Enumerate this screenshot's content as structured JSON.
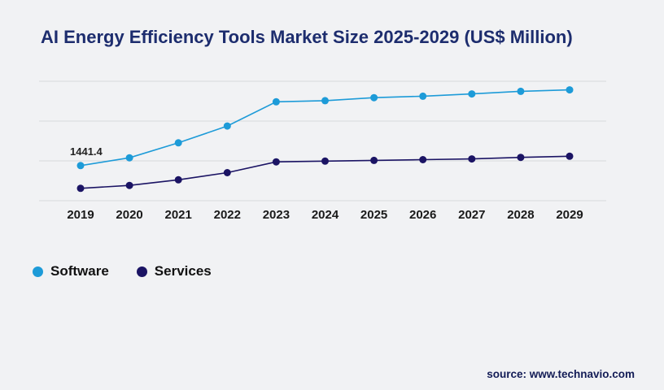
{
  "chart_data": {
    "type": "line",
    "title": "AI Energy Efficiency Tools Market Size 2025-2029 (US$ Million)",
    "categories": [
      "2019",
      "2020",
      "2021",
      "2022",
      "2023",
      "2024",
      "2025",
      "2026",
      "2027",
      "2028",
      "2029"
    ],
    "series": [
      {
        "name": "Software",
        "color": "#1d9bd8",
        "values": [
          1441.4,
          1650,
          2050,
          2500,
          3150,
          3180,
          3260,
          3300,
          3360,
          3430,
          3470
        ]
      },
      {
        "name": "Services",
        "color": "#1b1464",
        "values": [
          830,
          910,
          1060,
          1250,
          1540,
          1560,
          1580,
          1600,
          1620,
          1660,
          1690
        ]
      }
    ],
    "xlabel": "",
    "ylabel": "",
    "ylim": [
      500,
      3700
    ],
    "grid": true,
    "gridline_count": 4,
    "legend_position": "bottom-left",
    "annotation": {
      "text": "1441.4",
      "series": "Software",
      "category": "2019"
    }
  },
  "colors": {
    "title": "#1d2d6e",
    "background": "#f1f2f4",
    "gridline": "#d8dadd",
    "tick_label": "#1a1a1a"
  },
  "source": {
    "text": "source: www.technavio.com"
  }
}
